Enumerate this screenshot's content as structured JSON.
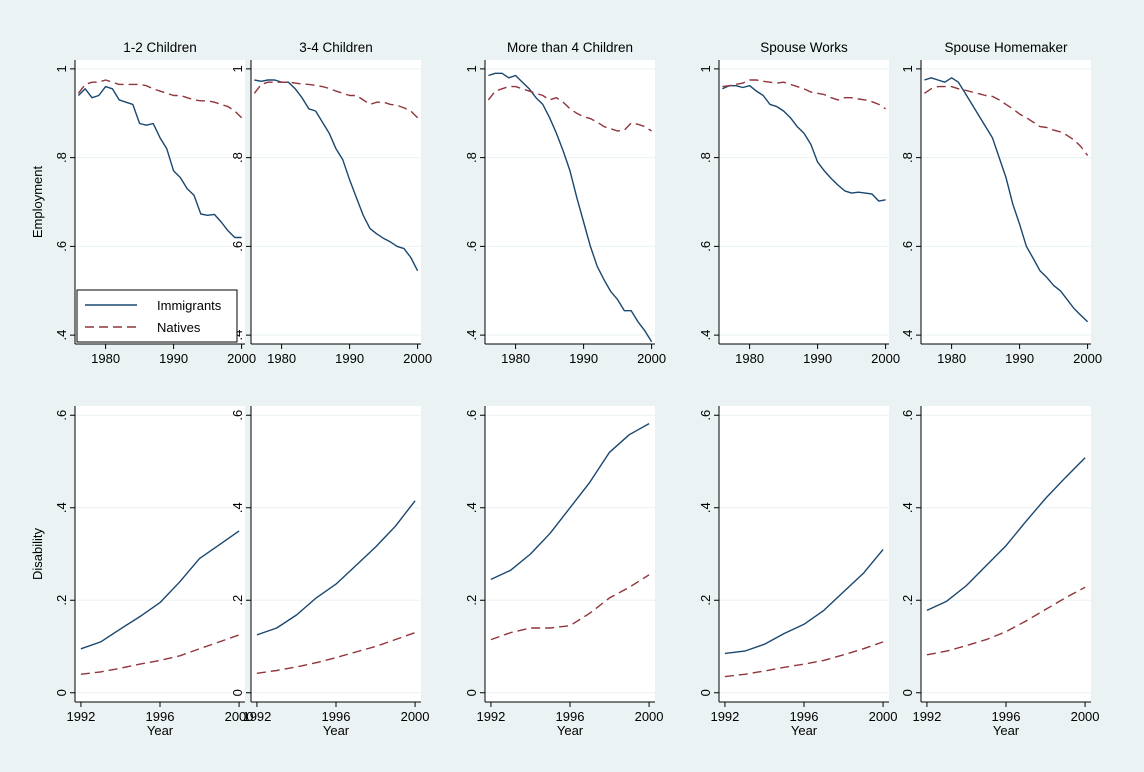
{
  "colors": {
    "background": "#eaf2f3",
    "plot_background": "#ffffff",
    "grid": "#eaf2f3",
    "immigrants": "#1a476f",
    "natives": "#90353b",
    "text": "#000000"
  },
  "legend": {
    "immigrants_label": "Immigrants",
    "natives_label": "Natives",
    "placement": "inside-bottom-left of first employment panel"
  },
  "panel_titles": [
    "1-2 Children",
    "3-4 Children",
    "More than 4 Children",
    "Spouse Works",
    "Spouse Homemaker"
  ],
  "rows": {
    "employment": {
      "ylabel": "Employment",
      "ytick_labels": [
        ".4",
        ".6",
        ".8",
        "1"
      ],
      "xtick_labels": [
        "1980",
        "1990",
        "2000"
      ]
    },
    "disability": {
      "ylabel": "Disability",
      "xlabel": "Year",
      "ytick_labels": [
        "0",
        ".2",
        ".4",
        ".6"
      ],
      "xtick_labels": [
        "1992",
        "1996",
        "2000"
      ]
    }
  },
  "chart_data": [
    {
      "type": "line",
      "row": "employment",
      "panel": "1-2 Children",
      "title": "1-2 Children",
      "ylabel": "Employment",
      "xlabel": "",
      "xlim": [
        1975.5,
        2000.5
      ],
      "ylim": [
        0.38,
        1.02
      ],
      "grid": true,
      "x": [
        1976,
        1977,
        1978,
        1979,
        1980,
        1981,
        1982,
        1983,
        1984,
        1985,
        1986,
        1987,
        1988,
        1989,
        1990,
        1991,
        1992,
        1993,
        1994,
        1995,
        1996,
        1997,
        1998,
        1999,
        2000
      ],
      "series": [
        {
          "name": "Immigrants",
          "values": [
            0.94,
            0.955,
            0.935,
            0.94,
            0.96,
            0.955,
            0.93,
            0.925,
            0.92,
            0.877,
            0.873,
            0.877,
            0.845,
            0.82,
            0.77,
            0.755,
            0.73,
            0.715,
            0.673,
            0.67,
            0.672,
            0.655,
            0.635,
            0.62,
            0.62
          ]
        },
        {
          "name": "Natives",
          "values": [
            0.945,
            0.965,
            0.97,
            0.97,
            0.975,
            0.97,
            0.965,
            0.965,
            0.965,
            0.965,
            0.962,
            0.955,
            0.95,
            0.945,
            0.94,
            0.94,
            0.935,
            0.93,
            0.928,
            0.928,
            0.925,
            0.92,
            0.915,
            0.905,
            0.89
          ]
        }
      ]
    },
    {
      "type": "line",
      "row": "employment",
      "panel": "3-4 Children",
      "title": "3-4 Children",
      "ylabel": "",
      "xlabel": "",
      "xlim": [
        1975.5,
        2000.5
      ],
      "ylim": [
        0.38,
        1.02
      ],
      "grid": true,
      "x": [
        1976,
        1977,
        1978,
        1979,
        1980,
        1981,
        1982,
        1983,
        1984,
        1985,
        1986,
        1987,
        1988,
        1989,
        1990,
        1991,
        1992,
        1993,
        1994,
        1995,
        1996,
        1997,
        1998,
        1999,
        2000
      ],
      "series": [
        {
          "name": "Immigrants",
          "values": [
            0.975,
            0.972,
            0.975,
            0.975,
            0.97,
            0.97,
            0.955,
            0.935,
            0.91,
            0.905,
            0.88,
            0.855,
            0.82,
            0.795,
            0.75,
            0.71,
            0.67,
            0.64,
            0.628,
            0.618,
            0.61,
            0.6,
            0.595,
            0.575,
            0.545
          ]
        },
        {
          "name": "Natives",
          "values": [
            0.945,
            0.965,
            0.97,
            0.97,
            0.97,
            0.97,
            0.968,
            0.966,
            0.965,
            0.963,
            0.96,
            0.956,
            0.95,
            0.945,
            0.94,
            0.94,
            0.93,
            0.92,
            0.925,
            0.925,
            0.92,
            0.918,
            0.912,
            0.905,
            0.89
          ]
        }
      ]
    },
    {
      "type": "line",
      "row": "employment",
      "panel": "More than 4 Children",
      "title": "More than 4 Children",
      "ylabel": "",
      "xlabel": "",
      "xlim": [
        1975.5,
        2000.5
      ],
      "ylim": [
        0.38,
        1.02
      ],
      "grid": true,
      "x": [
        1976,
        1977,
        1978,
        1979,
        1980,
        1981,
        1982,
        1983,
        1984,
        1985,
        1986,
        1987,
        1988,
        1989,
        1990,
        1991,
        1992,
        1993,
        1994,
        1995,
        1996,
        1997,
        1998,
        1999,
        2000
      ],
      "series": [
        {
          "name": "Immigrants",
          "values": [
            0.985,
            0.99,
            0.99,
            0.98,
            0.985,
            0.97,
            0.955,
            0.935,
            0.92,
            0.89,
            0.855,
            0.815,
            0.77,
            0.71,
            0.655,
            0.6,
            0.555,
            0.525,
            0.498,
            0.48,
            0.455,
            0.455,
            0.43,
            0.41,
            0.385
          ]
        },
        {
          "name": "Natives",
          "values": [
            0.93,
            0.95,
            0.955,
            0.96,
            0.96,
            0.955,
            0.95,
            0.945,
            0.94,
            0.93,
            0.935,
            0.925,
            0.91,
            0.9,
            0.892,
            0.888,
            0.88,
            0.87,
            0.865,
            0.86,
            0.862,
            0.878,
            0.875,
            0.87,
            0.86
          ]
        }
      ]
    },
    {
      "type": "line",
      "row": "employment",
      "panel": "Spouse Works",
      "title": "Spouse Works",
      "ylabel": "",
      "xlabel": "",
      "xlim": [
        1975.5,
        2000.5
      ],
      "ylim": [
        0.38,
        1.02
      ],
      "grid": true,
      "x": [
        1976,
        1977,
        1978,
        1979,
        1980,
        1981,
        1982,
        1983,
        1984,
        1985,
        1986,
        1987,
        1988,
        1989,
        1990,
        1991,
        1992,
        1993,
        1994,
        1995,
        1996,
        1997,
        1998,
        1999,
        2000
      ],
      "series": [
        {
          "name": "Immigrants",
          "values": [
            0.955,
            0.962,
            0.962,
            0.958,
            0.962,
            0.95,
            0.94,
            0.92,
            0.915,
            0.905,
            0.89,
            0.87,
            0.855,
            0.83,
            0.79,
            0.77,
            0.753,
            0.738,
            0.725,
            0.72,
            0.722,
            0.72,
            0.718,
            0.702,
            0.705
          ]
        },
        {
          "name": "Natives",
          "values": [
            0.96,
            0.962,
            0.965,
            0.968,
            0.975,
            0.975,
            0.972,
            0.97,
            0.968,
            0.97,
            0.965,
            0.96,
            0.955,
            0.948,
            0.945,
            0.942,
            0.935,
            0.93,
            0.935,
            0.935,
            0.932,
            0.93,
            0.926,
            0.92,
            0.91
          ]
        }
      ]
    },
    {
      "type": "line",
      "row": "employment",
      "panel": "Spouse Homemaker",
      "title": "Spouse Homemaker",
      "ylabel": "",
      "xlabel": "",
      "xlim": [
        1975.5,
        2000.5
      ],
      "ylim": [
        0.38,
        1.02
      ],
      "grid": true,
      "x": [
        1976,
        1977,
        1978,
        1979,
        1980,
        1981,
        1982,
        1983,
        1984,
        1985,
        1986,
        1987,
        1988,
        1989,
        1990,
        1991,
        1992,
        1993,
        1994,
        1995,
        1996,
        1997,
        1998,
        1999,
        2000
      ],
      "series": [
        {
          "name": "Immigrants",
          "values": [
            0.975,
            0.98,
            0.975,
            0.97,
            0.98,
            0.97,
            0.945,
            0.92,
            0.895,
            0.87,
            0.845,
            0.8,
            0.755,
            0.695,
            0.65,
            0.6,
            0.573,
            0.545,
            0.53,
            0.512,
            0.5,
            0.48,
            0.46,
            0.445,
            0.43
          ]
        },
        {
          "name": "Natives",
          "values": [
            0.945,
            0.955,
            0.96,
            0.96,
            0.96,
            0.955,
            0.952,
            0.948,
            0.944,
            0.94,
            0.938,
            0.93,
            0.92,
            0.91,
            0.898,
            0.89,
            0.88,
            0.87,
            0.868,
            0.862,
            0.858,
            0.85,
            0.84,
            0.825,
            0.805
          ]
        }
      ]
    },
    {
      "type": "line",
      "row": "disability",
      "panel": "1-2 Children",
      "title": "",
      "ylabel": "Disability",
      "xlabel": "Year",
      "xlim": [
        1991.7,
        2000.3
      ],
      "ylim": [
        -0.02,
        0.62
      ],
      "grid": true,
      "x": [
        1992,
        1993,
        1994,
        1995,
        1996,
        1997,
        1998,
        1999,
        2000
      ],
      "series": [
        {
          "name": "Immigrants",
          "values": [
            0.095,
            0.11,
            0.138,
            0.165,
            0.195,
            0.24,
            0.29,
            0.32,
            0.35
          ]
        },
        {
          "name": "Natives",
          "values": [
            0.04,
            0.045,
            0.053,
            0.062,
            0.07,
            0.08,
            0.095,
            0.11,
            0.125
          ]
        }
      ]
    },
    {
      "type": "line",
      "row": "disability",
      "panel": "3-4 Children",
      "title": "",
      "ylabel": "",
      "xlabel": "Year",
      "xlim": [
        1991.7,
        2000.3
      ],
      "ylim": [
        -0.02,
        0.62
      ],
      "grid": true,
      "x": [
        1992,
        1993,
        1994,
        1995,
        1996,
        1997,
        1998,
        1999,
        2000
      ],
      "series": [
        {
          "name": "Immigrants",
          "values": [
            0.125,
            0.14,
            0.168,
            0.205,
            0.235,
            0.275,
            0.315,
            0.36,
            0.415
          ]
        },
        {
          "name": "Natives",
          "values": [
            0.042,
            0.048,
            0.056,
            0.065,
            0.076,
            0.088,
            0.1,
            0.115,
            0.13
          ]
        }
      ]
    },
    {
      "type": "line",
      "row": "disability",
      "panel": "More than 4 Children",
      "title": "",
      "ylabel": "",
      "xlabel": "Year",
      "xlim": [
        1991.7,
        2000.3
      ],
      "ylim": [
        -0.02,
        0.62
      ],
      "grid": true,
      "x": [
        1992,
        1993,
        1994,
        1995,
        1996,
        1997,
        1998,
        1999,
        2000
      ],
      "series": [
        {
          "name": "Immigrants",
          "values": [
            0.245,
            0.265,
            0.3,
            0.345,
            0.4,
            0.455,
            0.52,
            0.558,
            0.582
          ]
        },
        {
          "name": "Natives",
          "values": [
            0.115,
            0.13,
            0.14,
            0.14,
            0.145,
            0.172,
            0.205,
            0.228,
            0.255
          ]
        }
      ]
    },
    {
      "type": "line",
      "row": "disability",
      "panel": "Spouse Works",
      "title": "",
      "ylabel": "",
      "xlabel": "Year",
      "xlim": [
        1991.7,
        2000.3
      ],
      "ylim": [
        -0.02,
        0.62
      ],
      "grid": true,
      "x": [
        1992,
        1993,
        1994,
        1995,
        1996,
        1997,
        1998,
        1999,
        2000
      ],
      "series": [
        {
          "name": "Immigrants",
          "values": [
            0.085,
            0.09,
            0.105,
            0.128,
            0.148,
            0.178,
            0.218,
            0.258,
            0.31
          ]
        },
        {
          "name": "Natives",
          "values": [
            0.035,
            0.04,
            0.047,
            0.055,
            0.062,
            0.07,
            0.082,
            0.095,
            0.11
          ]
        }
      ]
    },
    {
      "type": "line",
      "row": "disability",
      "panel": "Spouse Homemaker",
      "title": "",
      "ylabel": "",
      "xlabel": "Year",
      "xlim": [
        1991.7,
        2000.3
      ],
      "ylim": [
        -0.02,
        0.62
      ],
      "grid": true,
      "x": [
        1992,
        1993,
        1994,
        1995,
        1996,
        1997,
        1998,
        1999,
        2000
      ],
      "series": [
        {
          "name": "Immigrants",
          "values": [
            0.178,
            0.198,
            0.232,
            0.275,
            0.318,
            0.37,
            0.42,
            0.465,
            0.508
          ]
        },
        {
          "name": "Natives",
          "values": [
            0.082,
            0.09,
            0.102,
            0.115,
            0.132,
            0.155,
            0.18,
            0.205,
            0.228
          ]
        }
      ]
    }
  ]
}
